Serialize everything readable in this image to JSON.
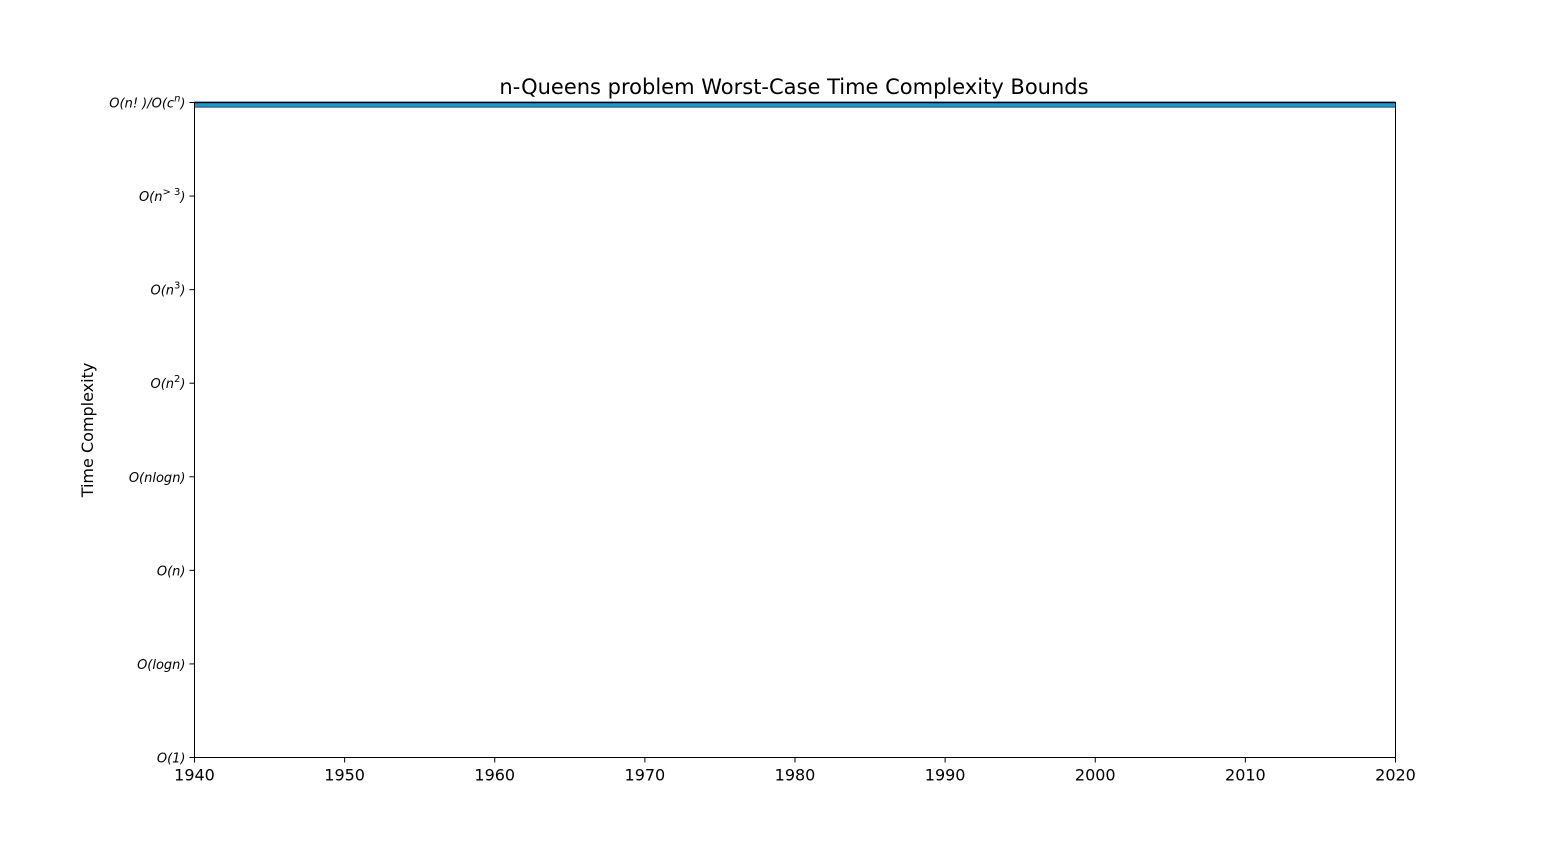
{
  "chart_data": {
    "type": "area",
    "title": "n-Queens problem Worst-Case Time Complexity Bounds",
    "xlabel": "",
    "ylabel": "Time Complexity",
    "xlim": [
      1940,
      2020
    ],
    "x_ticks": [
      "1940",
      "1950",
      "1960",
      "1970",
      "1980",
      "1990",
      "2000",
      "2010",
      "2020"
    ],
    "ylim": [
      0,
      7
    ],
    "y_ticks": [
      {
        "value": 0,
        "label": "O(1)",
        "base": "O(1)",
        "sup": "",
        "tail": ""
      },
      {
        "value": 1,
        "label": "O(logn)",
        "base": "O(logn)",
        "sup": "",
        "tail": ""
      },
      {
        "value": 2,
        "label": "O(n)",
        "base": "O(n)",
        "sup": "",
        "tail": ""
      },
      {
        "value": 3,
        "label": "O(nlogn)",
        "base": "O(nlogn)",
        "sup": "",
        "tail": ""
      },
      {
        "value": 4,
        "label": "O(n^2)",
        "base": "O(n",
        "sup": "2",
        "tail": ")"
      },
      {
        "value": 5,
        "label": "O(n^3)",
        "base": "O(n",
        "sup": "3",
        "tail": ")"
      },
      {
        "value": 6,
        "label": "O(n^>3)",
        "base": "O(n",
        "sup": "> 3",
        "tail": ")"
      },
      {
        "value": 7,
        "label": "O(n!)/O(c^n)",
        "base": "O(n! )/O(c",
        "sup": "n",
        "tail": ")"
      }
    ],
    "series": [
      {
        "points": [
          {
            "x": 1940,
            "y": 7
          },
          {
            "x": 2020,
            "y": 7
          }
        ],
        "fill_from": 6.95,
        "color": "#1b9bc8",
        "edge_color": "#1f4e79"
      }
    ],
    "grid": false,
    "legend": "none"
  }
}
